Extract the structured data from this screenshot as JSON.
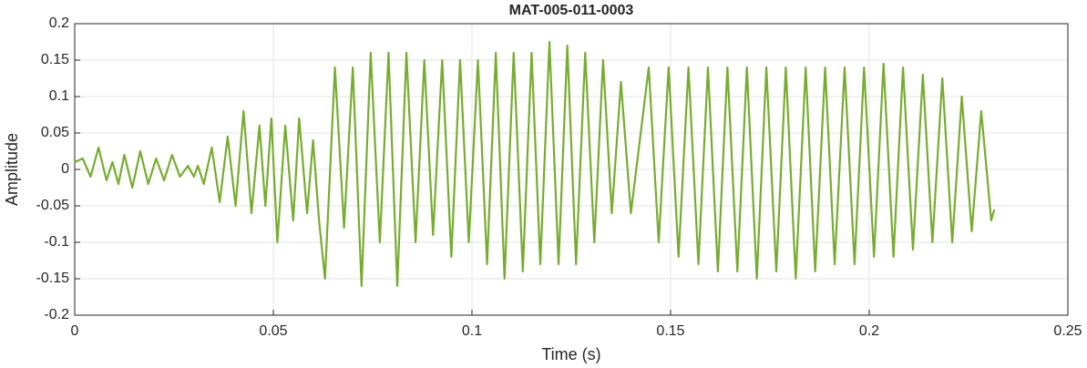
{
  "chart_data": {
    "type": "line",
    "title": "MAT-005-011-0003",
    "x_label": "Time (s)",
    "y_label": "Amplitude",
    "color": "#77ac30",
    "grid": true,
    "xlim": [
      0,
      0.25
    ],
    "xticks": [
      0,
      0.05,
      0.1,
      0.15,
      0.2,
      0.25
    ],
    "ylim": [
      -0.2,
      0.2
    ],
    "yticks": [
      0.2,
      0.15,
      0.1,
      0.05,
      0,
      -0.05,
      -0.1,
      -0.15,
      -0.2
    ],
    "x": [
      0,
      0.002,
      0.004,
      0.006,
      0.008,
      0.0095,
      0.011,
      0.0125,
      0.0145,
      0.0165,
      0.0185,
      0.0205,
      0.0225,
      0.0245,
      0.0265,
      0.0285,
      0.03,
      0.031,
      0.0325,
      0.0345,
      0.0365,
      0.0385,
      0.0405,
      0.0425,
      0.0445,
      0.0465,
      0.048,
      0.0495,
      0.051,
      0.053,
      0.055,
      0.0565,
      0.0585,
      0.06,
      0.0615,
      0.063,
      0.0655,
      0.0678,
      0.07,
      0.0722,
      0.0745,
      0.0768,
      0.079,
      0.0812,
      0.0835,
      0.0858,
      0.088,
      0.0902,
      0.0925,
      0.0948,
      0.097,
      0.0992,
      0.1015,
      0.1038,
      0.106,
      0.1082,
      0.1105,
      0.1128,
      0.115,
      0.1172,
      0.1195,
      0.1218,
      0.124,
      0.1262,
      0.1285,
      0.1308,
      0.133,
      0.1352,
      0.1375,
      0.14,
      0.1445,
      0.147,
      0.1495,
      0.152,
      0.1545,
      0.157,
      0.1594,
      0.1619,
      0.1643,
      0.1668,
      0.1692,
      0.1717,
      0.1741,
      0.1766,
      0.179,
      0.1815,
      0.184,
      0.1864,
      0.1889,
      0.1913,
      0.1938,
      0.1963,
      0.1987,
      0.2012,
      0.2036,
      0.2061,
      0.2085,
      0.211,
      0.2135,
      0.2159,
      0.2184,
      0.2209,
      0.2233,
      0.2258,
      0.2282,
      0.2307,
      0.2315
    ],
    "values": [
      0.01,
      0.015,
      -0.01,
      0.03,
      -0.015,
      0.01,
      -0.02,
      0.02,
      -0.025,
      0.025,
      -0.02,
      0.015,
      -0.015,
      0.02,
      -0.01,
      0.005,
      -0.01,
      0.005,
      -0.02,
      0.03,
      -0.045,
      0.045,
      -0.05,
      0.08,
      -0.06,
      0.06,
      -0.05,
      0.07,
      -0.1,
      0.06,
      -0.07,
      0.07,
      -0.06,
      0.04,
      -0.07,
      -0.15,
      0.14,
      -0.08,
      0.14,
      -0.16,
      0.16,
      -0.1,
      0.16,
      -0.16,
      0.16,
      -0.1,
      0.15,
      -0.09,
      0.15,
      -0.12,
      0.15,
      -0.1,
      0.15,
      -0.13,
      0.16,
      -0.15,
      0.16,
      -0.14,
      0.16,
      -0.13,
      0.175,
      -0.13,
      0.17,
      -0.13,
      0.16,
      -0.1,
      0.15,
      -0.06,
      0.12,
      -0.06,
      0.14,
      -0.1,
      0.14,
      -0.12,
      0.14,
      -0.13,
      0.14,
      -0.14,
      0.14,
      -0.14,
      0.14,
      -0.15,
      0.14,
      -0.14,
      0.14,
      -0.15,
      0.14,
      -0.14,
      0.14,
      -0.13,
      0.14,
      -0.13,
      0.14,
      -0.12,
      0.145,
      -0.12,
      0.14,
      -0.11,
      0.13,
      -0.1,
      0.125,
      -0.1,
      0.1,
      -0.085,
      0.08,
      -0.07,
      -0.055
    ]
  }
}
